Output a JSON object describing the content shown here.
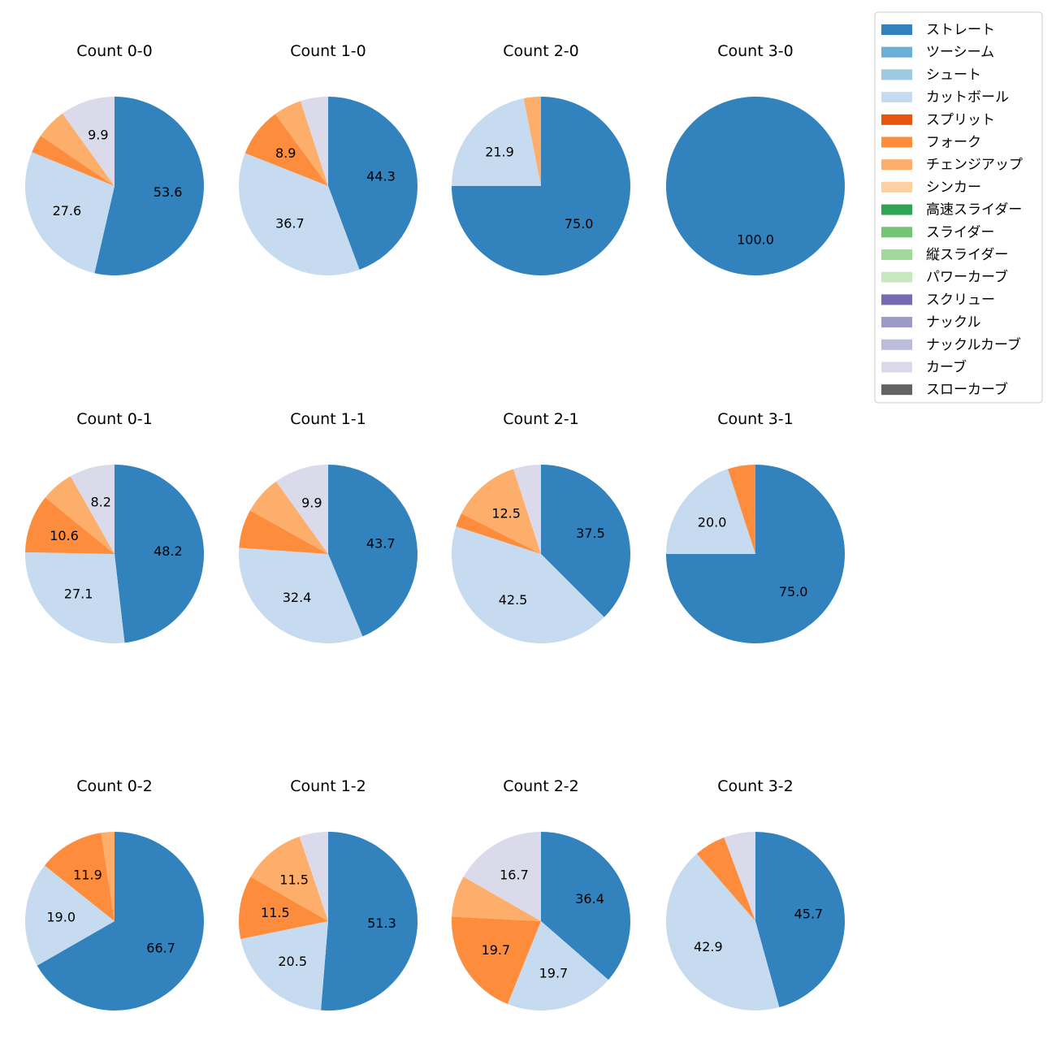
{
  "chart_data": {
    "type": "pie",
    "legend": {
      "placement": "top-right",
      "entries": [
        {
          "name": "ストレート",
          "color": "#3182bd"
        },
        {
          "name": "ツーシーム",
          "color": "#6baed6"
        },
        {
          "name": "シュート",
          "color": "#9ecae1"
        },
        {
          "name": "カットボール",
          "color": "#c6dbef"
        },
        {
          "name": "スプリット",
          "color": "#e6550d"
        },
        {
          "name": "フォーク",
          "color": "#fd8d3c"
        },
        {
          "name": "チェンジアップ",
          "color": "#fdae6b"
        },
        {
          "name": "シンカー",
          "color": "#fdd0a2"
        },
        {
          "name": "高速スライダー",
          "color": "#31a354"
        },
        {
          "name": "スライダー",
          "color": "#74c476"
        },
        {
          "name": "縦スライダー",
          "color": "#a1d99b"
        },
        {
          "name": "パワーカーブ",
          "color": "#c7e9c0"
        },
        {
          "name": "スクリュー",
          "color": "#756bb1"
        },
        {
          "name": "ナックル",
          "color": "#9e9ac8"
        },
        {
          "name": "ナックルカーブ",
          "color": "#bcbddc"
        },
        {
          "name": "カーブ",
          "color": "#dadaeb"
        },
        {
          "name": "スローカーブ",
          "color": "#636363"
        }
      ]
    },
    "charts": [
      {
        "title": "Count 0-0",
        "slices": [
          {
            "pitch": "ストレート",
            "value": 53.6,
            "label": "53.6"
          },
          {
            "pitch": "カットボール",
            "value": 27.6,
            "label": "27.6"
          },
          {
            "pitch": "フォーク",
            "value": 3.3,
            "label": ""
          },
          {
            "pitch": "チェンジアップ",
            "value": 5.6,
            "label": ""
          },
          {
            "pitch": "カーブ",
            "value": 9.9,
            "label": "9.9"
          }
        ]
      },
      {
        "title": "Count 1-0",
        "slices": [
          {
            "pitch": "ストレート",
            "value": 44.3,
            "label": "44.3"
          },
          {
            "pitch": "カットボール",
            "value": 36.7,
            "label": "36.7"
          },
          {
            "pitch": "フォーク",
            "value": 8.9,
            "label": "8.9"
          },
          {
            "pitch": "チェンジアップ",
            "value": 5.1,
            "label": ""
          },
          {
            "pitch": "カーブ",
            "value": 5.0,
            "label": ""
          }
        ]
      },
      {
        "title": "Count 2-0",
        "slices": [
          {
            "pitch": "ストレート",
            "value": 75.0,
            "label": "75.0"
          },
          {
            "pitch": "カットボール",
            "value": 21.9,
            "label": "21.9"
          },
          {
            "pitch": "チェンジアップ",
            "value": 3.1,
            "label": ""
          }
        ]
      },
      {
        "title": "Count 3-0",
        "slices": [
          {
            "pitch": "ストレート",
            "value": 100.0,
            "label": "100.0"
          }
        ]
      },
      {
        "title": "Count 0-1",
        "slices": [
          {
            "pitch": "ストレート",
            "value": 48.2,
            "label": "48.2"
          },
          {
            "pitch": "カットボール",
            "value": 27.1,
            "label": "27.1"
          },
          {
            "pitch": "フォーク",
            "value": 10.6,
            "label": "10.6"
          },
          {
            "pitch": "チェンジアップ",
            "value": 5.9,
            "label": ""
          },
          {
            "pitch": "カーブ",
            "value": 8.2,
            "label": "8.2"
          }
        ]
      },
      {
        "title": "Count 1-1",
        "slices": [
          {
            "pitch": "ストレート",
            "value": 43.7,
            "label": "43.7"
          },
          {
            "pitch": "カットボール",
            "value": 32.4,
            "label": "32.4"
          },
          {
            "pitch": "フォーク",
            "value": 7.0,
            "label": ""
          },
          {
            "pitch": "チェンジアップ",
            "value": 7.0,
            "label": ""
          },
          {
            "pitch": "カーブ",
            "value": 9.9,
            "label": "9.9"
          }
        ]
      },
      {
        "title": "Count 2-1",
        "slices": [
          {
            "pitch": "ストレート",
            "value": 37.5,
            "label": "37.5"
          },
          {
            "pitch": "カットボール",
            "value": 42.5,
            "label": "42.5"
          },
          {
            "pitch": "フォーク",
            "value": 2.5,
            "label": ""
          },
          {
            "pitch": "チェンジアップ",
            "value": 12.5,
            "label": "12.5"
          },
          {
            "pitch": "カーブ",
            "value": 5.0,
            "label": ""
          }
        ]
      },
      {
        "title": "Count 3-1",
        "slices": [
          {
            "pitch": "ストレート",
            "value": 75.0,
            "label": "75.0"
          },
          {
            "pitch": "カットボール",
            "value": 20.0,
            "label": "20.0"
          },
          {
            "pitch": "フォーク",
            "value": 5.0,
            "label": ""
          }
        ]
      },
      {
        "title": "Count 0-2",
        "slices": [
          {
            "pitch": "ストレート",
            "value": 66.7,
            "label": "66.7"
          },
          {
            "pitch": "カットボール",
            "value": 19.0,
            "label": "19.0"
          },
          {
            "pitch": "フォーク",
            "value": 11.9,
            "label": "11.9"
          },
          {
            "pitch": "チェンジアップ",
            "value": 2.4,
            "label": ""
          }
        ]
      },
      {
        "title": "Count 1-2",
        "slices": [
          {
            "pitch": "ストレート",
            "value": 51.3,
            "label": "51.3"
          },
          {
            "pitch": "カットボール",
            "value": 20.5,
            "label": "20.5"
          },
          {
            "pitch": "フォーク",
            "value": 11.5,
            "label": "11.5"
          },
          {
            "pitch": "チェンジアップ",
            "value": 11.5,
            "label": "11.5"
          },
          {
            "pitch": "カーブ",
            "value": 5.2,
            "label": ""
          }
        ]
      },
      {
        "title": "Count 2-2",
        "slices": [
          {
            "pitch": "ストレート",
            "value": 36.4,
            "label": "36.4"
          },
          {
            "pitch": "カットボール",
            "value": 19.7,
            "label": "19.7"
          },
          {
            "pitch": "フォーク",
            "value": 19.7,
            "label": "19.7"
          },
          {
            "pitch": "チェンジアップ",
            "value": 7.5,
            "label": ""
          },
          {
            "pitch": "カーブ",
            "value": 16.7,
            "label": "16.7"
          }
        ]
      },
      {
        "title": "Count 3-2",
        "slices": [
          {
            "pitch": "ストレート",
            "value": 45.7,
            "label": "45.7"
          },
          {
            "pitch": "カットボール",
            "value": 42.9,
            "label": "42.9"
          },
          {
            "pitch": "フォーク",
            "value": 5.7,
            "label": ""
          },
          {
            "pitch": "カーブ",
            "value": 5.7,
            "label": ""
          }
        ]
      }
    ]
  }
}
